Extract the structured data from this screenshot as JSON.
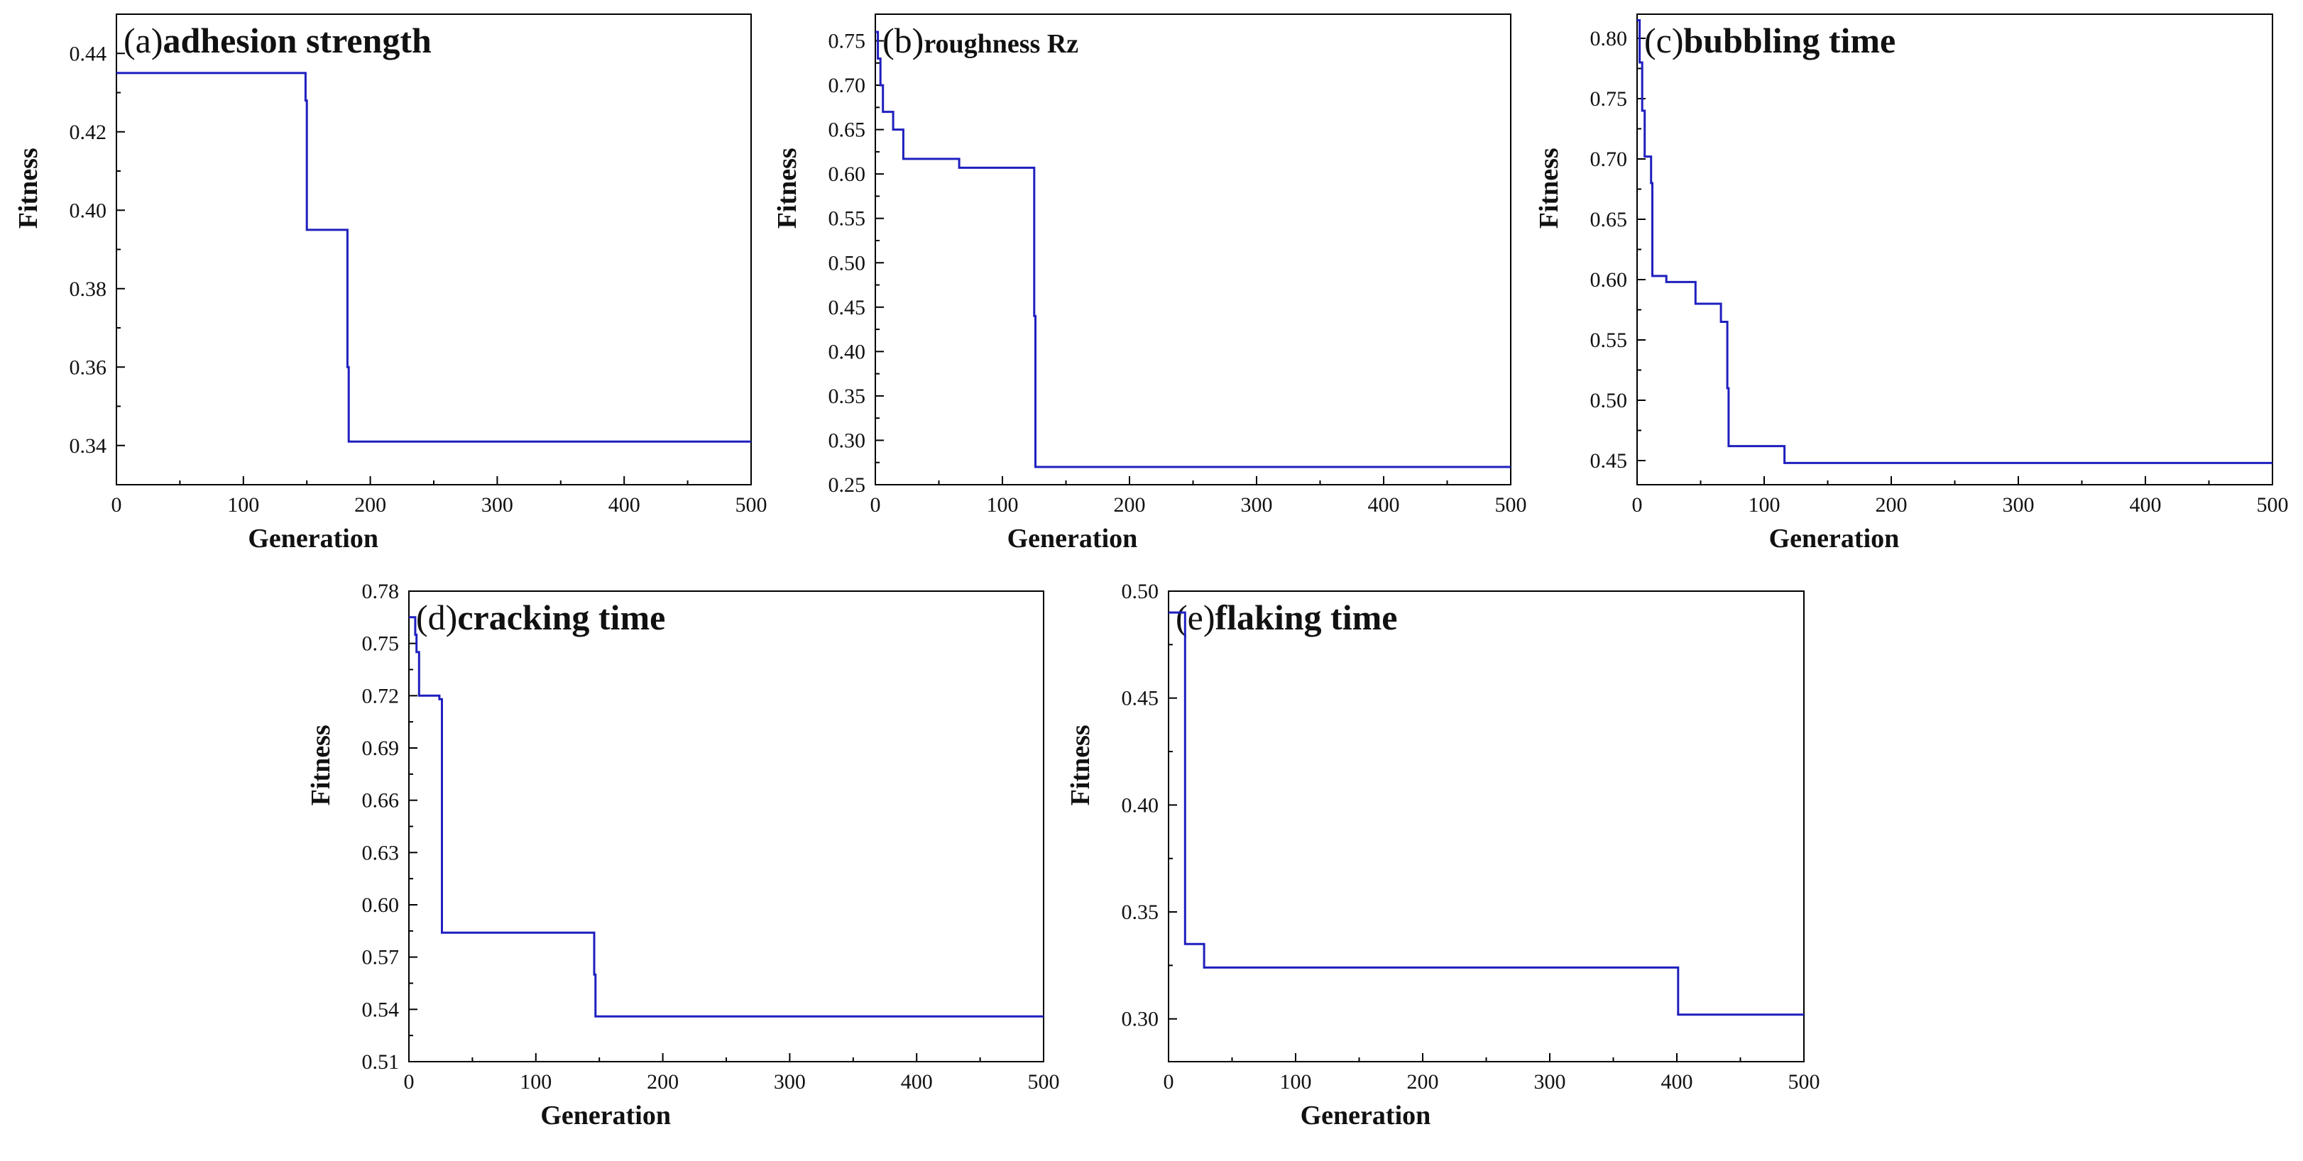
{
  "chart_data": [
    {
      "type": "line",
      "tag": "(a)",
      "name": "adhesion strength",
      "xlabel": "Generation",
      "ylabel": "Fitness",
      "xlim": [
        0,
        500
      ],
      "ylim": [
        0.33,
        0.45
      ],
      "xticks": [
        0,
        100,
        200,
        300,
        400,
        500
      ],
      "yticks": [
        0.34,
        0.36,
        0.38,
        0.4,
        0.42,
        0.44
      ],
      "ytick_decimals": 2,
      "color": "#1f1fbf",
      "series": [
        {
          "name": "fitness",
          "steps": [
            [
              0,
              0.435
            ],
            [
              149,
              0.428
            ],
            [
              150,
              0.395
            ],
            [
              182,
              0.36
            ],
            [
              183,
              0.341
            ],
            [
              500,
              0.341
            ]
          ]
        }
      ]
    },
    {
      "type": "line",
      "tag": "(b)",
      "name": "roughness Rz",
      "small_name": true,
      "xlabel": "Generation",
      "ylabel": "Fitness",
      "xlim": [
        0,
        500
      ],
      "ylim": [
        0.25,
        0.78
      ],
      "xticks": [
        0,
        100,
        200,
        300,
        400,
        500
      ],
      "yticks": [
        0.25,
        0.3,
        0.35,
        0.4,
        0.45,
        0.5,
        0.55,
        0.6,
        0.65,
        0.7,
        0.75
      ],
      "ytick_decimals": 2,
      "color": "#1f1fbf",
      "series": [
        {
          "name": "fitness",
          "steps": [
            [
              0,
              0.76
            ],
            [
              2,
              0.73
            ],
            [
              4,
              0.7
            ],
            [
              6,
              0.67
            ],
            [
              13,
              0.67
            ],
            [
              14,
              0.65
            ],
            [
              21,
              0.65
            ],
            [
              22,
              0.617
            ],
            [
              65,
              0.617
            ],
            [
              66,
              0.607
            ],
            [
              124,
              0.607
            ],
            [
              125,
              0.44
            ],
            [
              126,
              0.27
            ],
            [
              500,
              0.27
            ]
          ]
        }
      ]
    },
    {
      "type": "line",
      "tag": "(c)",
      "name": "bubbling time",
      "xlabel": "Generation",
      "ylabel": "Fitness",
      "xlim": [
        0,
        500
      ],
      "ylim": [
        0.43,
        0.82
      ],
      "xticks": [
        0,
        100,
        200,
        300,
        400,
        500
      ],
      "yticks": [
        0.45,
        0.5,
        0.55,
        0.6,
        0.65,
        0.7,
        0.75,
        0.8
      ],
      "ytick_decimals": 2,
      "color": "#1f1fbf",
      "series": [
        {
          "name": "fitness",
          "steps": [
            [
              0,
              0.815
            ],
            [
              2,
              0.78
            ],
            [
              4,
              0.74
            ],
            [
              6,
              0.702
            ],
            [
              10,
              0.702
            ],
            [
              11,
              0.68
            ],
            [
              12,
              0.603
            ],
            [
              22,
              0.603
            ],
            [
              23,
              0.598
            ],
            [
              45,
              0.598
            ],
            [
              46,
              0.58
            ],
            [
              65,
              0.58
            ],
            [
              66,
              0.565
            ],
            [
              70,
              0.565
            ],
            [
              71,
              0.51
            ],
            [
              72,
              0.462
            ],
            [
              115,
              0.462
            ],
            [
              116,
              0.448
            ],
            [
              500,
              0.448
            ]
          ]
        }
      ]
    },
    {
      "type": "line",
      "tag": "(d)",
      "name": "cracking time",
      "xlabel": "Generation",
      "ylabel": "Fitness",
      "xlim": [
        0,
        500
      ],
      "ylim": [
        0.51,
        0.78
      ],
      "xticks": [
        0,
        100,
        200,
        300,
        400,
        500
      ],
      "yticks": [
        0.51,
        0.54,
        0.57,
        0.6,
        0.63,
        0.66,
        0.69,
        0.72,
        0.75,
        0.78
      ],
      "ytick_decimals": 2,
      "color": "#1f1fbf",
      "series": [
        {
          "name": "fitness",
          "steps": [
            [
              0,
              0.765
            ],
            [
              5,
              0.755
            ],
            [
              6,
              0.745
            ],
            [
              8,
              0.72
            ],
            [
              24,
              0.718
            ],
            [
              26,
              0.584
            ],
            [
              145,
              0.584
            ],
            [
              146,
              0.56
            ],
            [
              147,
              0.536
            ],
            [
              500,
              0.536
            ]
          ]
        }
      ]
    },
    {
      "type": "line",
      "tag": "(e)",
      "name": "flaking time",
      "xlabel": "Generation",
      "ylabel": "Fitness",
      "xlim": [
        0,
        500
      ],
      "ylim": [
        0.28,
        0.5
      ],
      "xticks": [
        0,
        100,
        200,
        300,
        400,
        500
      ],
      "yticks": [
        0.3,
        0.35,
        0.4,
        0.45,
        0.5
      ],
      "ytick_decimals": 2,
      "color": "#1f1fbf",
      "series": [
        {
          "name": "fitness",
          "steps": [
            [
              0,
              0.49
            ],
            [
              12,
              0.49
            ],
            [
              13,
              0.335
            ],
            [
              27,
              0.335
            ],
            [
              28,
              0.324
            ],
            [
              398,
              0.324
            ],
            [
              401,
              0.302
            ],
            [
              500,
              0.302
            ]
          ]
        }
      ]
    }
  ]
}
